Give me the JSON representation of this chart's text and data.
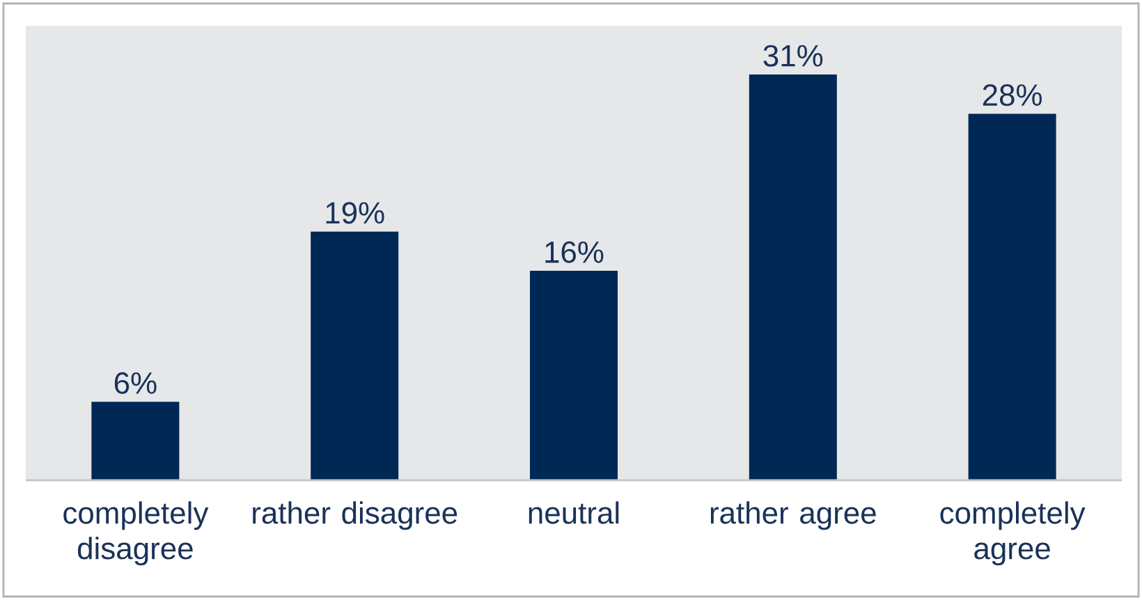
{
  "chart_data": {
    "type": "bar",
    "categories": [
      "completely disagree",
      "rather disagree",
      "neutral",
      "rather agree",
      "completely agree"
    ],
    "values": [
      6,
      19,
      16,
      31,
      28
    ],
    "value_labels": [
      "6%",
      "19%",
      "16%",
      "31%",
      "28%"
    ],
    "color": "#002855"
  }
}
